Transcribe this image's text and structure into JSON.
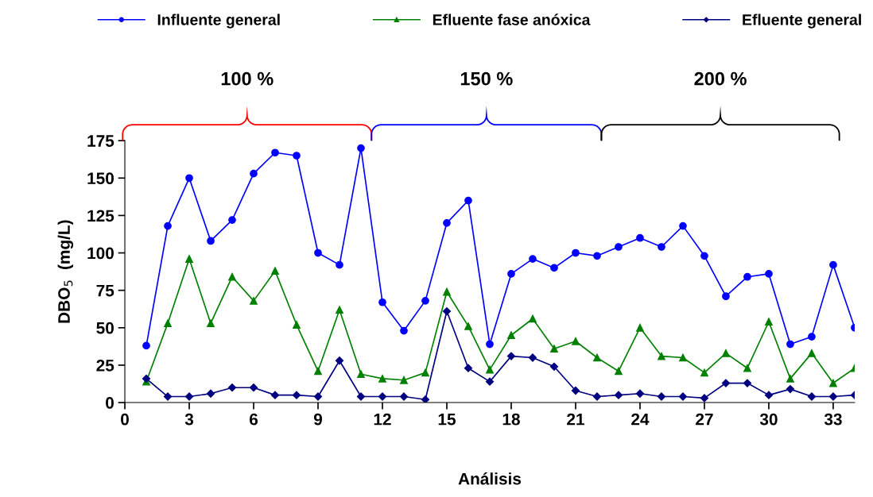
{
  "chart_data": {
    "type": "line",
    "xlabel": "Análisis",
    "ylabel": "DBO$_{5}$  (mg/L)",
    "x": [
      1,
      2,
      3,
      4,
      5,
      6,
      7,
      8,
      9,
      10,
      11,
      12,
      13,
      14,
      15,
      16,
      17,
      18,
      19,
      20,
      21,
      22,
      23,
      24,
      25,
      26,
      27,
      28,
      29,
      30,
      31,
      32,
      33,
      34
    ],
    "series": [
      {
        "name": "Influente general",
        "color": "#0000ff",
        "marker": "circle",
        "values": [
          38,
          118,
          150,
          108,
          122,
          153,
          167,
          165,
          100,
          92,
          170,
          67,
          48,
          68,
          120,
          135,
          39,
          86,
          96,
          90,
          100,
          98,
          104,
          110,
          104,
          118,
          98,
          71,
          84,
          86,
          39,
          44,
          92,
          50
        ]
      },
      {
        "name": "Efluente fase anóxica",
        "color": "#008000",
        "marker": "triangle",
        "values": [
          14,
          53,
          96,
          53,
          84,
          68,
          88,
          52,
          21,
          62,
          19,
          16,
          15,
          20,
          74,
          51,
          22,
          45,
          56,
          36,
          41,
          30,
          21,
          50,
          31,
          30,
          20,
          33,
          23,
          54,
          16,
          33,
          13,
          23
        ]
      },
      {
        "name": "Efluente general",
        "color": "#000080",
        "marker": "diamond",
        "values": [
          16,
          4,
          4,
          6,
          10,
          10,
          5,
          5,
          4,
          28,
          4,
          4,
          4,
          2,
          61,
          23,
          14,
          31,
          30,
          24,
          8,
          4,
          5,
          6,
          4,
          4,
          3,
          13,
          13,
          5,
          9,
          4,
          4,
          5
        ]
      }
    ],
    "xlim": [
      0,
      34
    ],
    "xticks": [
      0,
      3,
      6,
      9,
      12,
      15,
      18,
      21,
      24,
      27,
      30,
      33
    ],
    "ylim": [
      0,
      175
    ],
    "yticks": [
      0,
      25,
      50,
      75,
      100,
      125,
      150,
      175
    ],
    "annotations": [
      "100 %",
      "150 %",
      "200 %"
    ],
    "grid": false,
    "legend": "top"
  }
}
